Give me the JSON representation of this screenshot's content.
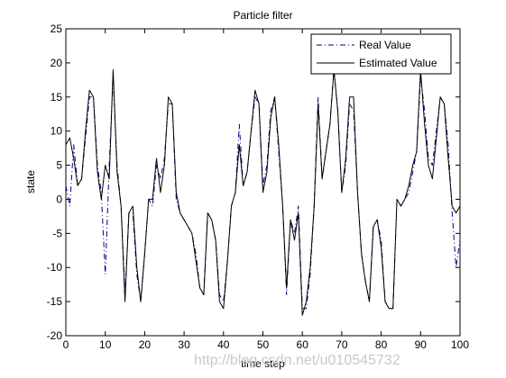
{
  "chart_data": {
    "type": "line",
    "title": "Particle filter",
    "xlabel": "time step",
    "ylabel": "state",
    "xlim": [
      0,
      100
    ],
    "ylim": [
      -20,
      25
    ],
    "xticks": [
      0,
      10,
      20,
      30,
      40,
      50,
      60,
      70,
      80,
      90,
      100
    ],
    "yticks": [
      -20,
      -15,
      -10,
      -5,
      0,
      5,
      10,
      15,
      20,
      25
    ],
    "grid": false,
    "legend_position": "top-right",
    "series": [
      {
        "name": "Real Value",
        "style": "dash-dot",
        "color": "#00008b",
        "x": [
          0,
          1,
          2,
          3,
          4,
          5,
          6,
          7,
          8,
          9,
          10,
          11,
          12,
          13,
          14,
          15,
          16,
          17,
          18,
          19,
          20,
          21,
          22,
          23,
          24,
          25,
          26,
          27,
          28,
          29,
          30,
          31,
          32,
          33,
          34,
          35,
          36,
          37,
          38,
          39,
          40,
          41,
          42,
          43,
          44,
          45,
          46,
          47,
          48,
          49,
          50,
          51,
          52,
          53,
          54,
          55,
          56,
          57,
          58,
          59,
          60,
          61,
          62,
          63,
          64,
          65,
          66,
          67,
          68,
          69,
          70,
          71,
          72,
          73,
          74,
          75,
          76,
          77,
          78,
          79,
          80,
          81,
          82,
          83,
          84,
          85,
          86,
          87,
          88,
          89,
          90,
          91,
          92,
          93,
          94,
          95,
          96,
          97,
          98,
          99,
          100
        ],
        "values": [
          2,
          -1,
          8,
          2,
          3,
          9,
          15,
          15,
          5,
          1,
          -11,
          5,
          18,
          5,
          -1,
          -14,
          -2,
          -2,
          -11,
          -15,
          -8,
          0,
          -1,
          5,
          3,
          6,
          14,
          14,
          0,
          -2,
          -3,
          -4,
          -5,
          -8,
          -13,
          -14,
          -2,
          -3,
          -6,
          -14,
          -15,
          -9,
          -1,
          1,
          11,
          2,
          4,
          10,
          15,
          14,
          2,
          5,
          13,
          15,
          7,
          -1,
          -14,
          -3,
          -5,
          -1,
          -16,
          -16,
          -11,
          -1,
          15,
          3,
          7,
          11,
          19,
          13,
          1,
          5,
          14,
          13,
          1,
          -8,
          -12,
          -15,
          -4,
          -3,
          -6,
          -15,
          -16,
          -16,
          0,
          -1,
          0,
          1,
          4,
          7,
          18,
          13,
          6,
          5,
          10,
          15,
          14,
          8,
          -2,
          -10,
          -6
        ]
      },
      {
        "name": "Estimated Value",
        "style": "solid",
        "color": "#000000",
        "x": [
          0,
          1,
          2,
          3,
          4,
          5,
          6,
          7,
          8,
          9,
          10,
          11,
          12,
          13,
          14,
          15,
          16,
          17,
          18,
          19,
          20,
          21,
          22,
          23,
          24,
          25,
          26,
          27,
          28,
          29,
          30,
          31,
          32,
          33,
          34,
          35,
          36,
          37,
          38,
          39,
          40,
          41,
          42,
          43,
          44,
          45,
          46,
          47,
          48,
          49,
          50,
          51,
          52,
          53,
          54,
          55,
          56,
          57,
          58,
          59,
          60,
          61,
          62,
          63,
          64,
          65,
          66,
          67,
          68,
          69,
          70,
          71,
          72,
          73,
          74,
          75,
          76,
          77,
          78,
          79,
          80,
          81,
          82,
          83,
          84,
          85,
          86,
          87,
          88,
          89,
          90,
          91,
          92,
          93,
          94,
          95,
          96,
          97,
          98,
          99,
          100
        ],
        "values": [
          8,
          9,
          6,
          2,
          3,
          10,
          16,
          15,
          4,
          0,
          5,
          3,
          19,
          4,
          -1,
          -15,
          -2,
          -1,
          -10,
          -15,
          -8,
          0,
          0,
          6,
          1,
          5,
          15,
          14,
          1,
          -2,
          -3,
          -4,
          -5,
          -9,
          -13,
          -14,
          -2,
          -3,
          -6,
          -15,
          -16,
          -9,
          -1,
          1,
          8,
          2,
          4,
          10,
          16,
          14,
          1,
          4,
          12,
          15,
          8,
          -1,
          -13,
          -3,
          -6,
          -2,
          -17,
          -15,
          -10,
          -1,
          14,
          3,
          7,
          11,
          19,
          13,
          1,
          6,
          15,
          15,
          1,
          -8,
          -12,
          -15,
          -4,
          -3,
          -7,
          -15,
          -16,
          -16,
          0,
          -1,
          0,
          2,
          5,
          7,
          19,
          11,
          5,
          3,
          9,
          15,
          14,
          6,
          -1,
          -2,
          -1
        ]
      }
    ]
  },
  "watermark_text": "http://blog.csdn.net/u010545732"
}
